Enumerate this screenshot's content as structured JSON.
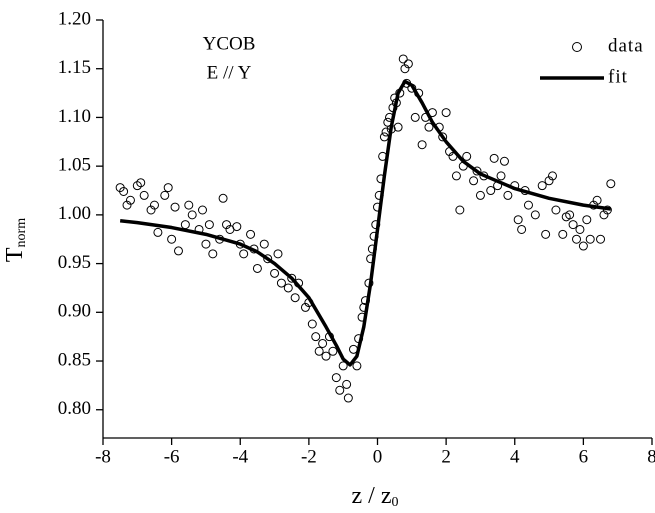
{
  "chart_data": {
    "type": "scatter",
    "y_label": "T",
    "y_label_sub": "norm",
    "x_label": "z / z",
    "x_label_sub": "0",
    "annotations": [
      "YCOB",
      "E // Y"
    ],
    "xlim": [
      -8,
      8
    ],
    "ylim": [
      0.771,
      1.2
    ],
    "xticks": [
      -8,
      -6,
      -4,
      -2,
      0,
      2,
      4,
      6,
      8
    ],
    "yticks": [
      {
        "value": 0.8,
        "label": "0.80"
      },
      {
        "value": 0.85,
        "label": "0.85"
      },
      {
        "value": 0.9,
        "label": "0.90"
      },
      {
        "value": 0.95,
        "label": "0.95"
      },
      {
        "value": 1.0,
        "label": "1.00"
      },
      {
        "value": 1.05,
        "label": "1.05"
      },
      {
        "value": 1.1,
        "label": "1.10"
      },
      {
        "value": 1.15,
        "label": "1.15"
      },
      {
        "value": 1.2,
        "label": "1.20"
      }
    ],
    "legend": "upper right",
    "series": [
      {
        "name": "data",
        "color": "#000000",
        "style": "markers",
        "x": [
          -7.5,
          -7.4,
          -7.3,
          -7.2,
          -7.0,
          -6.9,
          -6.8,
          -6.6,
          -6.5,
          -6.4,
          -6.2,
          -6.1,
          -6.0,
          -5.9,
          -5.8,
          -5.6,
          -5.5,
          -5.4,
          -5.2,
          -5.1,
          -5.0,
          -4.9,
          -4.8,
          -4.6,
          -4.5,
          -4.4,
          -4.3,
          -4.1,
          -4.0,
          -3.9,
          -3.7,
          -3.6,
          -3.5,
          -3.3,
          -3.2,
          -3.0,
          -2.9,
          -2.8,
          -2.6,
          -2.5,
          -2.4,
          -2.3,
          -2.1,
          -2.0,
          -1.9,
          -1.8,
          -1.7,
          -1.6,
          -1.5,
          -1.4,
          -1.3,
          -1.2,
          -1.1,
          -1.0,
          -0.9,
          -0.85,
          -0.7,
          -0.6,
          -0.55,
          -0.45,
          -0.4,
          -0.35,
          -0.25,
          -0.2,
          -0.15,
          -0.1,
          -0.05,
          0,
          0.05,
          0.1,
          0.15,
          0.2,
          0.25,
          0.3,
          0.35,
          0.4,
          0.45,
          0.5,
          0.55,
          0.6,
          0.65,
          0.75,
          0.8,
          0.85,
          0.9,
          1.0,
          1.1,
          1.2,
          1.3,
          1.4,
          1.5,
          1.6,
          1.8,
          1.9,
          2.0,
          2.1,
          2.2,
          2.3,
          2.4,
          2.5,
          2.6,
          2.8,
          2.9,
          3.0,
          3.1,
          3.3,
          3.4,
          3.5,
          3.6,
          3.7,
          3.8,
          4.0,
          4.1,
          4.2,
          4.3,
          4.4,
          4.6,
          4.8,
          4.9,
          5.0,
          5.1,
          5.2,
          5.4,
          5.5,
          5.6,
          5.7,
          5.8,
          5.9,
          6.0,
          6.1,
          6.2,
          6.3,
          6.4,
          6.5,
          6.6,
          6.7,
          6.8
        ],
        "values": [
          1.028,
          1.024,
          1.01,
          1.015,
          1.03,
          1.033,
          1.02,
          1.005,
          1.01,
          0.982,
          1.02,
          1.028,
          0.975,
          1.008,
          0.963,
          0.99,
          1.01,
          1.0,
          0.985,
          1.005,
          0.97,
          0.99,
          0.96,
          0.975,
          1.017,
          0.99,
          0.985,
          0.988,
          0.97,
          0.96,
          0.98,
          0.965,
          0.945,
          0.97,
          0.955,
          0.94,
          0.96,
          0.93,
          0.925,
          0.935,
          0.915,
          0.93,
          0.905,
          0.91,
          0.888,
          0.875,
          0.86,
          0.868,
          0.855,
          0.875,
          0.86,
          0.833,
          0.82,
          0.845,
          0.826,
          0.812,
          0.862,
          0.845,
          0.873,
          0.895,
          0.905,
          0.912,
          0.93,
          0.955,
          0.965,
          0.978,
          0.99,
          1.008,
          1.02,
          1.037,
          1.06,
          1.08,
          1.085,
          1.095,
          1.1,
          1.088,
          1.11,
          1.12,
          1.115,
          1.09,
          1.125,
          1.16,
          1.15,
          1.135,
          1.155,
          1.13,
          1.1,
          1.125,
          1.072,
          1.1,
          1.09,
          1.105,
          1.09,
          1.08,
          1.105,
          1.065,
          1.06,
          1.04,
          1.005,
          1.05,
          1.06,
          1.035,
          1.045,
          1.02,
          1.04,
          1.025,
          1.058,
          1.03,
          1.04,
          1.055,
          1.02,
          1.03,
          0.995,
          0.985,
          1.025,
          1.01,
          1.0,
          1.03,
          0.98,
          1.035,
          1.04,
          1.005,
          0.98,
          0.998,
          1.0,
          0.99,
          0.975,
          0.985,
          0.968,
          0.995,
          0.975,
          1.01,
          1.015,
          0.975,
          1.0,
          1.005,
          1.032
        ]
      },
      {
        "name": "fit",
        "color": "#000000",
        "style": "line",
        "x": [
          -7.5,
          -7,
          -6,
          -5,
          -4,
          -3.5,
          -3,
          -2.5,
          -2,
          -1.5,
          -1.2,
          -1,
          -0.8,
          -0.6,
          -0.4,
          -0.2,
          0,
          0.2,
          0.4,
          0.6,
          0.8,
          1,
          1.3,
          1.6,
          2,
          2.5,
          3,
          4,
          5,
          6,
          6.8
        ],
        "values": [
          0.994,
          0.992,
          0.987,
          0.98,
          0.97,
          0.962,
          0.95,
          0.935,
          0.915,
          0.885,
          0.866,
          0.852,
          0.846,
          0.855,
          0.885,
          0.93,
          0.985,
          1.04,
          1.09,
          1.125,
          1.137,
          1.133,
          1.115,
          1.095,
          1.075,
          1.055,
          1.042,
          1.027,
          1.017,
          1.01,
          1.006
        ]
      }
    ]
  }
}
